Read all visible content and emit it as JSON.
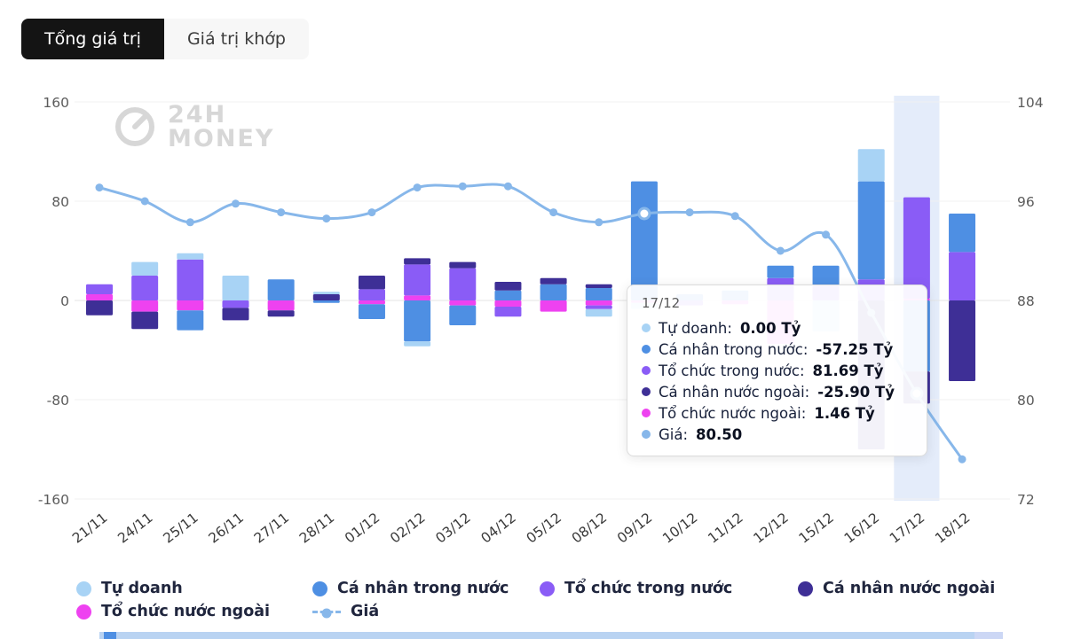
{
  "tabs": [
    {
      "label": "Tổng giá trị",
      "active": true
    },
    {
      "label": "Giá trị khớp",
      "active": false
    }
  ],
  "watermark": {
    "line1": "24H",
    "line2": "MONEY"
  },
  "colors": {
    "tab_active_bg": "#141414",
    "tab_active_text": "#ffffff",
    "tab_inactive_bg": "#f7f7f7",
    "tab_inactive_text": "#3d3d3d",
    "watermark": "#d7d7d7",
    "highlight_band": "#e4ecfa",
    "tooltip_border": "#dcdcdc",
    "tooltip_text": "#17203a",
    "legend_text": "#20263e",
    "axis_label": "#5b5b5b",
    "x_label": "#3a3a3a",
    "strip_light": "#b9d3f2",
    "strip_dark": "#4e8fe3",
    "strip_mid": "#ccd7f5"
  },
  "chart_data": {
    "type": "bar",
    "subtype": "stacked-bars-with-price-line",
    "categories": [
      "21/11",
      "24/11",
      "25/11",
      "26/11",
      "27/11",
      "28/11",
      "01/12",
      "02/12",
      "03/12",
      "04/12",
      "05/12",
      "08/12",
      "09/12",
      "10/12",
      "11/12",
      "12/12",
      "15/12",
      "16/12",
      "17/12",
      "18/12"
    ],
    "series": [
      {
        "name": "Tự doanh",
        "color": "#a8d3f5",
        "values": [
          0,
          11,
          5,
          20,
          0,
          2,
          0,
          -4,
          0,
          0,
          0,
          -6,
          -5,
          0,
          0,
          0,
          -25,
          26,
          0,
          0
        ]
      },
      {
        "name": "Cá nhân trong nước",
        "color": "#4e8fe3",
        "values": [
          0,
          0,
          -16,
          0,
          17,
          -2,
          -12,
          -33,
          -16,
          8,
          13,
          10,
          96,
          5,
          8,
          10,
          16,
          79,
          -57.25,
          31
        ]
      },
      {
        "name": "Tổ chức trong nước",
        "color": "#8a5cf6",
        "values": [
          8,
          20,
          33,
          -6,
          0,
          0,
          9,
          25,
          26,
          -8,
          0,
          -3,
          0,
          -4,
          0,
          18,
          12,
          17,
          81.69,
          39
        ]
      },
      {
        "name": "Cá nhân nước ngoài",
        "color": "#3e2f96",
        "values": [
          -12,
          -14,
          0,
          -10,
          -5,
          5,
          11,
          5,
          5,
          7,
          5,
          3,
          0,
          0,
          0,
          0,
          0,
          -120,
          -25.9,
          -65
        ]
      },
      {
        "name": "Tổ chức nước ngoài",
        "color": "#ee42f0",
        "values": [
          5,
          -9,
          -8,
          0,
          -8,
          0,
          -3,
          4,
          -4,
          -5,
          -9,
          -4,
          -2,
          0,
          -3,
          -35,
          0,
          0,
          1.46,
          0
        ]
      }
    ],
    "stack_order": [
      "Tổ chức nước ngoài",
      "Tổ chức trong nước",
      "Cá nhân trong nước",
      "Cá nhân nước ngoài",
      "Tự doanh"
    ],
    "line": {
      "name": "Giá",
      "color": "#87b7ea",
      "values": [
        97.1,
        96.0,
        94.3,
        95.8,
        95.1,
        94.6,
        95.1,
        97.1,
        97.2,
        97.2,
        95.1,
        94.3,
        95.0,
        95.1,
        94.8,
        92.0,
        93.3,
        87.0,
        80.5,
        75.2
      ],
      "highlight_indices": [
        12,
        18
      ]
    },
    "left_axis": {
      "ticks": [
        160,
        80,
        0,
        -80,
        -160
      ],
      "unit": "Tỷ"
    },
    "right_axis": {
      "ticks": [
        104,
        96,
        88,
        80,
        72
      ]
    },
    "highlight_column_index": 18,
    "legend_position": "bottom",
    "grid": "horizontal-faint"
  },
  "tooltip": {
    "title": "17/12",
    "rows": [
      {
        "label": "Tự doanh:",
        "value": "0.00 Tỷ",
        "color": "#a8d3f5"
      },
      {
        "label": "Cá nhân trong nước:",
        "value": "-57.25 Tỷ",
        "color": "#4e8fe3"
      },
      {
        "label": "Tổ chức trong nước:",
        "value": "81.69 Tỷ",
        "color": "#8a5cf6"
      },
      {
        "label": "Cá nhân nước ngoài:",
        "value": "-25.90 Tỷ",
        "color": "#3e2f96"
      },
      {
        "label": "Tổ chức nước ngoài:",
        "value": "1.46 Tỷ",
        "color": "#ee42f0"
      },
      {
        "label": "Giá:",
        "value": "80.50",
        "color": "#87b7ea"
      }
    ]
  },
  "legend": {
    "items": [
      {
        "label": "Tự doanh",
        "color": "#a8d3f5",
        "icon": "dot"
      },
      {
        "label": "Cá nhân trong nước",
        "color": "#4e8fe3",
        "icon": "dot"
      },
      {
        "label": "Tổ chức trong nước",
        "color": "#8a5cf6",
        "icon": "dot"
      },
      {
        "label": "Cá nhân nước ngoài",
        "color": "#3e2f96",
        "icon": "dot"
      },
      {
        "label": "Tổ chức nước ngoài",
        "color": "#ee42f0",
        "icon": "dot"
      },
      {
        "label": "Giá",
        "color": "#87b7ea",
        "icon": "dashed-line-dot"
      }
    ]
  }
}
